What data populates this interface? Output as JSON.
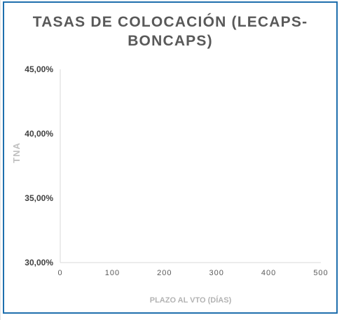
{
  "chart_data": {
    "type": "scatter",
    "title_line1": "TASAS DE COLOCACIÓN (LECAPS-",
    "title_line2": "BONCAPS)",
    "xlabel": "PLAZO AL VTO (DÍAS)",
    "ylabel": "TNA",
    "xlim": [
      0,
      500
    ],
    "ylim": [
      0.3,
      0.45
    ],
    "x_ticks": [
      "0",
      "100",
      "200",
      "300",
      "400",
      "500"
    ],
    "y_ticks": [
      "45,00%",
      "40,00%",
      "35,00%",
      "30,00%"
    ],
    "grid": false,
    "series": [
      {
        "x": [],
        "y": []
      }
    ]
  }
}
